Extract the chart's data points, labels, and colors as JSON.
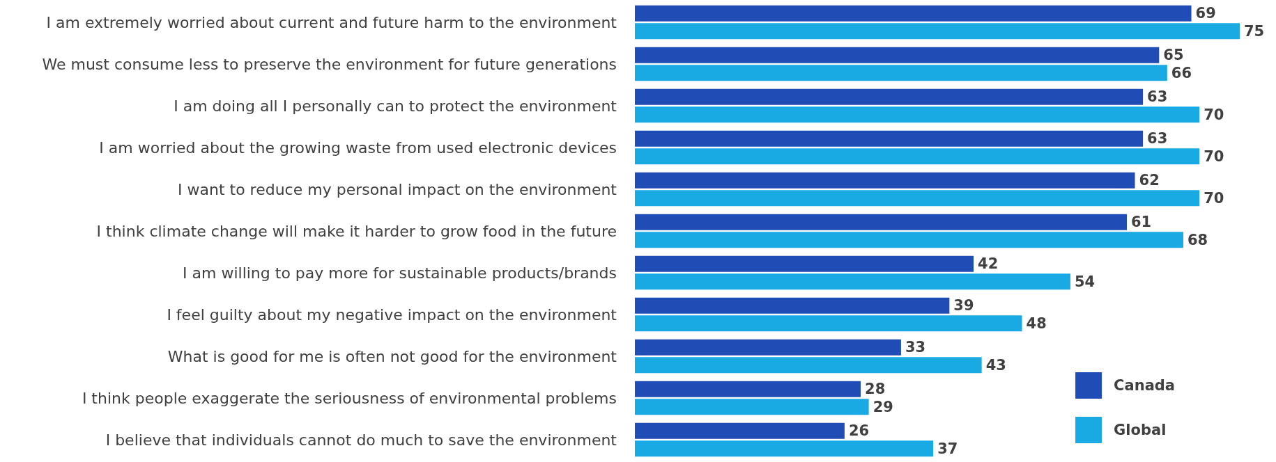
{
  "chart_data": {
    "type": "bar",
    "orientation": "horizontal",
    "data_labels": true,
    "legend": "bottom right",
    "grid": false,
    "categories": [
      "I am extremely worried about current and future harm to the environment",
      "We must consume less to preserve the environment for future generations",
      "I am doing all I personally can to protect the environment",
      "I am worried about the growing waste from used electronic devices",
      "I want to reduce my personal impact on the environment",
      "I think climate change will make it harder to grow food in the future",
      "I am willing to pay more for sustainable products/brands",
      "I feel guilty about my negative impact on the environment",
      "What is good for me is often not good for the environment",
      "I think people exaggerate the seriousness of environmental problems",
      "I believe that individuals cannot do much to save the environment"
    ],
    "series": [
      {
        "name": "Canada",
        "color": "#1f4db5",
        "values": [
          69,
          65,
          63,
          63,
          62,
          61,
          42,
          39,
          33,
          28,
          26
        ]
      },
      {
        "name": "Global",
        "color": "#19a9e3",
        "values": [
          75,
          66,
          70,
          70,
          70,
          68,
          54,
          48,
          43,
          29,
          37
        ]
      }
    ]
  }
}
